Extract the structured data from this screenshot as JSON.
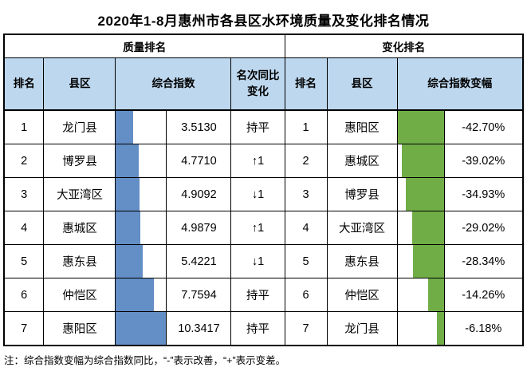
{
  "title": "2020年1-8月惠州市各县区水环境质量及变化排名情况",
  "colors": {
    "header_fill": "#BDD7EE",
    "quality_bar": "#638EC6",
    "change_bar": "#70AD47",
    "border": "#000000"
  },
  "quality": {
    "group_header": "质量排名",
    "columns": {
      "rank": "排名",
      "district": "县区",
      "index": "综合指数",
      "change": "名次同比变化"
    },
    "rows": [
      {
        "rank": "1",
        "district": "龙门县",
        "index": "3.5130",
        "change": "持平",
        "bar_pct": 34
      },
      {
        "rank": "2",
        "district": "博罗县",
        "index": "4.7710",
        "change": "↑1",
        "bar_pct": 46
      },
      {
        "rank": "3",
        "district": "大亚湾区",
        "index": "4.9092",
        "change": "↓1",
        "bar_pct": 47.5
      },
      {
        "rank": "4",
        "district": "惠城区",
        "index": "4.9879",
        "change": "↑1",
        "bar_pct": 48
      },
      {
        "rank": "5",
        "district": "惠东县",
        "index": "5.4221",
        "change": "↓1",
        "bar_pct": 52.5
      },
      {
        "rank": "6",
        "district": "仲恺区",
        "index": "7.7594",
        "change": "持平",
        "bar_pct": 75
      },
      {
        "rank": "7",
        "district": "惠阳区",
        "index": "10.3417",
        "change": "持平",
        "bar_pct": 100
      }
    ]
  },
  "change": {
    "group_header": "变化排名",
    "columns": {
      "rank": "排名",
      "district": "县区",
      "delta": "综合指数变幅"
    },
    "rows": [
      {
        "rank": "1",
        "district": "惠阳区",
        "delta": "-42.70%",
        "bar_pct": 100
      },
      {
        "rank": "2",
        "district": "惠城区",
        "delta": "-39.02%",
        "bar_pct": 91
      },
      {
        "rank": "3",
        "district": "博罗县",
        "delta": "-34.93%",
        "bar_pct": 82
      },
      {
        "rank": "4",
        "district": "大亚湾区",
        "delta": "-29.02%",
        "bar_pct": 68
      },
      {
        "rank": "5",
        "district": "惠东县",
        "delta": "-28.34%",
        "bar_pct": 66
      },
      {
        "rank": "6",
        "district": "仲恺区",
        "delta": "-14.26%",
        "bar_pct": 33
      },
      {
        "rank": "7",
        "district": "龙门县",
        "delta": "-6.18%",
        "bar_pct": 14
      }
    ]
  },
  "footnote": "注：综合指数变幅为综合指数同比，“-”表示改善，“+”表示变差。",
  "chart_data": {
    "type": "table",
    "title": "2020年1-8月惠州市各县区水环境质量及变化排名情况",
    "sections": [
      {
        "name": "质量排名",
        "columns": [
          "排名",
          "县区",
          "综合指数",
          "名次同比变化"
        ],
        "rows": [
          [
            1,
            "龙门县",
            3.513,
            "持平"
          ],
          [
            2,
            "博罗县",
            4.771,
            "↑1"
          ],
          [
            3,
            "大亚湾区",
            4.9092,
            "↓1"
          ],
          [
            4,
            "惠城区",
            4.9879,
            "↑1"
          ],
          [
            5,
            "惠东县",
            5.4221,
            "↓1"
          ],
          [
            6,
            "仲恺区",
            7.7594,
            "持平"
          ],
          [
            7,
            "惠阳区",
            10.3417,
            "持平"
          ]
        ],
        "data_bar": {
          "column": "综合指数",
          "color": "#638EC6",
          "align": "left",
          "scale_max": 10.3417
        }
      },
      {
        "name": "变化排名",
        "columns": [
          "排名",
          "县区",
          "综合指数变幅"
        ],
        "rows": [
          [
            1,
            "惠阳区",
            -42.7
          ],
          [
            2,
            "惠城区",
            -39.02
          ],
          [
            3,
            "博罗县",
            -34.93
          ],
          [
            4,
            "大亚湾区",
            -29.02
          ],
          [
            5,
            "惠东县",
            -28.34
          ],
          [
            6,
            "仲恺区",
            -14.26
          ],
          [
            7,
            "龙门县",
            -6.18
          ]
        ],
        "data_bar": {
          "column": "综合指数变幅",
          "color": "#70AD47",
          "align": "right",
          "scale_max_abs": 42.7,
          "unit": "%"
        }
      }
    ],
    "note": "注：综合指数变幅为综合指数同比，“-”表示改善，“+”表示变差。"
  }
}
